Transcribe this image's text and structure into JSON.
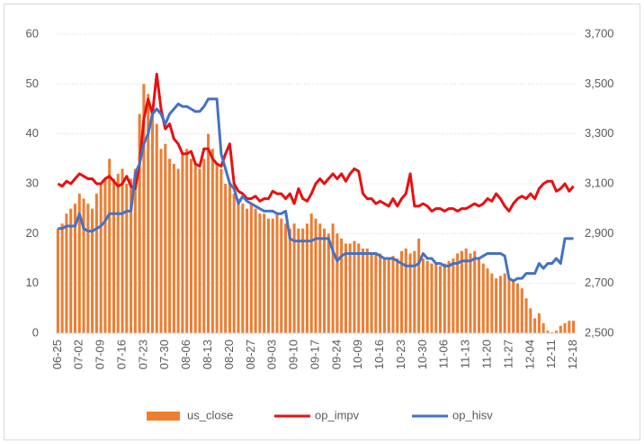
{
  "chart_data": {
    "type": "combo",
    "categories": [
      "06-25",
      null,
      null,
      null,
      null,
      "07-02",
      null,
      null,
      null,
      null,
      "07-09",
      null,
      null,
      null,
      null,
      "07-16",
      null,
      null,
      null,
      null,
      "07-23",
      null,
      null,
      null,
      null,
      "07-30",
      null,
      null,
      null,
      null,
      "08-06",
      null,
      null,
      null,
      null,
      "08-13",
      null,
      null,
      null,
      null,
      "08-20",
      null,
      null,
      null,
      null,
      "08-27",
      null,
      null,
      null,
      null,
      "09-03",
      null,
      null,
      null,
      null,
      "09-10",
      null,
      null,
      null,
      null,
      "09-17",
      null,
      null,
      null,
      null,
      "09-24",
      null,
      null,
      null,
      null,
      "10-09",
      null,
      null,
      null,
      null,
      "10-16",
      null,
      null,
      null,
      null,
      "10-23",
      null,
      null,
      null,
      null,
      "10-30",
      null,
      null,
      null,
      null,
      "11-06",
      null,
      null,
      null,
      null,
      "11-13",
      null,
      null,
      null,
      null,
      "11-20",
      null,
      null,
      null,
      null,
      "11-27",
      null,
      null,
      null,
      null,
      "12-04",
      null,
      null,
      null,
      null,
      "12-11",
      null,
      null,
      null,
      null,
      "12-18"
    ],
    "ylim": [
      0,
      60
    ],
    "yticks": [
      0,
      10,
      20,
      30,
      40,
      50,
      60
    ],
    "y2lim": [
      2500,
      3700
    ],
    "y2ticks": [
      {
        "value": 2500,
        "label": "2,500"
      },
      {
        "value": 2700,
        "label": "2,700"
      },
      {
        "value": 2900,
        "label": "2,900"
      },
      {
        "value": 3100,
        "label": "3,100"
      },
      {
        "value": 3300,
        "label": "3,300"
      },
      {
        "value": 3500,
        "label": "3,500"
      },
      {
        "value": 3700,
        "label": "3,700"
      }
    ],
    "grid": true,
    "legend": "bottom",
    "series": [
      {
        "name": "us_close",
        "type": "bar",
        "axis": "y2",
        "color": "#ed7d31",
        "values": [
          2920,
          2940,
          2980,
          3000,
          3020,
          3060,
          3040,
          3020,
          3000,
          3060,
          3100,
          3120,
          3200,
          3120,
          3140,
          3160,
          3100,
          3120,
          3160,
          3380,
          3500,
          3460,
          3400,
          3340,
          3240,
          3260,
          3200,
          3180,
          3160,
          3220,
          3240,
          3200,
          3180,
          3160,
          3200,
          3300,
          3240,
          3180,
          3160,
          3100,
          3100,
          3060,
          3040,
          3020,
          3000,
          3020,
          3000,
          2980,
          2980,
          2960,
          2960,
          2980,
          2960,
          2940,
          2920,
          2940,
          2920,
          2920,
          2940,
          2980,
          2960,
          2940,
          2920,
          2900,
          2940,
          2900,
          2880,
          2860,
          2860,
          2870,
          2860,
          2840,
          2840,
          2820,
          2820,
          2820,
          2800,
          2800,
          2810,
          2800,
          2830,
          2840,
          2820,
          2830,
          2880,
          2800,
          2790,
          2780,
          2780,
          2770,
          2780,
          2790,
          2800,
          2820,
          2830,
          2840,
          2820,
          2830,
          2800,
          2780,
          2760,
          2740,
          2720,
          2730,
          2740,
          2720,
          2710,
          2700,
          2680,
          2640,
          2600,
          2560,
          2580,
          2540,
          2510,
          2504,
          2510,
          2530,
          2540,
          2550,
          2550
        ]
      },
      {
        "name": "op_impv",
        "type": "line",
        "axis": "y",
        "color": "#e81010",
        "values": [
          30,
          29.5,
          30.5,
          30,
          31,
          32,
          31.5,
          31,
          31,
          30,
          30,
          31,
          31.5,
          30.5,
          29.5,
          30,
          31.5,
          29.5,
          29,
          34,
          43,
          47,
          44,
          52,
          45,
          41,
          42,
          39,
          38,
          36,
          36,
          36.5,
          34,
          33.5,
          37,
          37,
          35,
          34,
          33.5,
          36,
          38,
          30,
          28.5,
          28,
          27,
          27,
          27.5,
          26.5,
          27,
          27,
          28.5,
          28,
          28,
          27,
          28,
          26,
          29,
          27,
          26.5,
          28,
          30,
          31,
          30,
          31,
          32,
          31,
          32,
          30.5,
          32,
          33,
          32.5,
          28,
          27,
          27,
          26,
          26.5,
          26,
          25.5,
          27,
          25.5,
          27,
          28,
          32,
          25.5,
          25.5,
          26,
          25.5,
          24.5,
          25,
          25,
          24.5,
          25,
          25,
          24.5,
          25,
          25,
          25.5,
          26,
          25.5,
          26,
          27,
          26.5,
          28,
          27,
          25.5,
          24.5,
          26,
          27,
          27.5,
          27,
          28,
          27,
          29,
          30,
          30.5,
          30.5,
          28.5,
          29,
          30,
          28.5,
          29.5
        ]
      },
      {
        "name": "op_hisv",
        "type": "line",
        "axis": "y",
        "color": "#4472c4",
        "values": [
          21,
          21,
          21.5,
          21.5,
          21.5,
          24,
          21,
          20.5,
          20.5,
          21,
          21.5,
          22.5,
          24,
          24,
          24,
          24,
          24.5,
          24.5,
          32,
          34,
          38,
          40,
          44,
          45,
          44,
          42,
          44,
          45,
          46,
          45.5,
          45.5,
          45,
          44.5,
          44.5,
          45.5,
          47,
          47,
          47,
          36,
          33,
          30,
          29,
          26,
          27.5,
          26.5,
          26,
          25.5,
          25,
          24.5,
          24.5,
          24.5,
          24,
          24,
          24.5,
          19,
          18.5,
          18.5,
          18.5,
          18.5,
          18.5,
          19,
          19,
          19,
          19,
          16.5,
          14.5,
          15.5,
          16,
          16,
          16,
          16,
          16,
          16,
          16,
          16,
          15.5,
          15,
          15,
          15,
          14.5,
          14,
          13.5,
          13.5,
          13.5,
          14,
          16,
          15,
          15,
          14,
          14,
          13.5,
          13.5,
          14,
          14,
          14.5,
          14.5,
          14.5,
          15,
          15,
          15.5,
          16,
          16,
          16,
          16,
          15.5,
          11,
          10.5,
          11,
          11,
          12,
          12,
          12,
          14,
          13,
          14,
          14,
          15,
          14,
          19,
          19,
          19
        ]
      }
    ]
  }
}
